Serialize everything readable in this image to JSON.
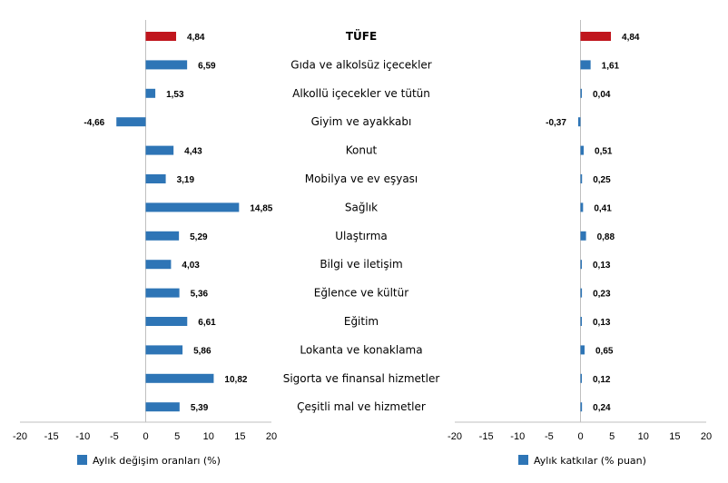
{
  "chart_data": [
    {
      "type": "bar",
      "orientation": "horizontal",
      "legend_label": "Aylık değişim oranları (%)",
      "legend_position": "bottom",
      "categories": [
        "TÜFE",
        "Gıda ve alkolsüz içecekler",
        "Alkollü içecekler ve tütün",
        "Giyim ve ayakkabı",
        "Konut",
        "Mobilya ve ev eşyası",
        "Sağlık",
        "Ulaştırma",
        "Bilgi ve iletişim",
        "Eğlence ve kültür",
        "Eğitim",
        "Lokanta ve konaklama",
        "Sigorta ve finansal hizmetler",
        "Çeşitli mal ve hizmetler"
      ],
      "values": [
        4.84,
        6.59,
        1.53,
        -4.66,
        4.43,
        3.19,
        14.85,
        5.29,
        4.03,
        5.36,
        6.61,
        5.86,
        10.82,
        5.39
      ],
      "value_labels": [
        "4,84",
        "6,59",
        "1,53",
        "-4,66",
        "4,43",
        "3,19",
        "14,85",
        "5,29",
        "4,03",
        "5,36",
        "6,61",
        "5,86",
        "10,82",
        "5,39"
      ],
      "xlim": [
        -20,
        20
      ],
      "ticks": [
        "-20",
        "-15",
        "-10",
        "-5",
        "0",
        "5",
        "10",
        "15",
        "20"
      ],
      "grid": false
    },
    {
      "type": "bar",
      "orientation": "horizontal",
      "legend_label": "Aylık katkılar (% puan)",
      "legend_position": "bottom",
      "categories": [
        "TÜFE",
        "Gıda ve alkolsüz içecekler",
        "Alkollü içecekler ve tütün",
        "Giyim ve ayakkabı",
        "Konut",
        "Mobilya ve ev eşyası",
        "Sağlık",
        "Ulaştırma",
        "Bilgi ve iletişim",
        "Eğlence ve kültür",
        "Eğitim",
        "Lokanta ve konaklama",
        "Sigorta ve finansal hizmetler",
        "Çeşitli mal ve hizmetler"
      ],
      "values": [
        4.84,
        1.61,
        0.04,
        -0.37,
        0.51,
        0.25,
        0.41,
        0.88,
        0.13,
        0.23,
        0.13,
        0.65,
        0.12,
        0.24
      ],
      "value_labels": [
        "4,84",
        "1,61",
        "0,04",
        "-0,37",
        "0,51",
        "0,25",
        "0,41",
        "0,88",
        "0,13",
        "0,23",
        "0,13",
        "0,65",
        "0,12",
        "0,24"
      ],
      "xlim": [
        -20,
        20
      ],
      "ticks": [
        "-20",
        "-15",
        "-10",
        "-5",
        "0",
        "5",
        "10",
        "15",
        "20"
      ],
      "grid": false
    }
  ],
  "colors": {
    "highlight": "#c0161d",
    "bar": "#2e75b6",
    "axis": "#bfbfbf"
  }
}
